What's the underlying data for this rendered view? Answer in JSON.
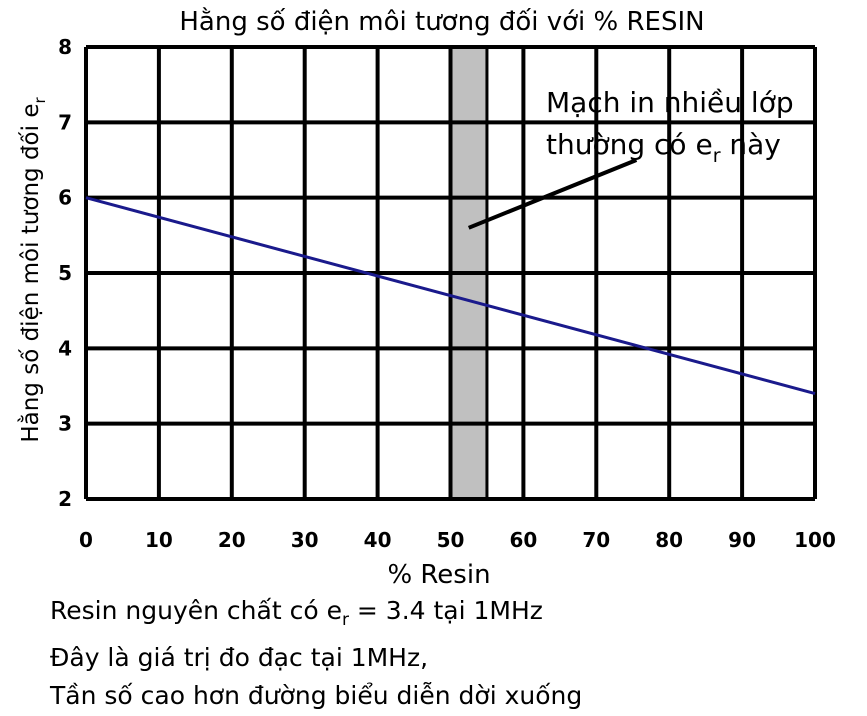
{
  "chart_data": {
    "type": "line",
    "title": "Hằng số điện môi tương đối với % RESIN",
    "xlabel": "% Resin",
    "ylabel": "Hằng số điện môi tương đối e",
    "ylabel_subscript": "r",
    "x_ticks": [
      0,
      10,
      20,
      30,
      40,
      50,
      60,
      70,
      80,
      90,
      100
    ],
    "y_ticks": [
      2,
      3,
      4,
      5,
      6,
      7,
      8
    ],
    "xlim": [
      0,
      100
    ],
    "ylim": [
      2,
      8
    ],
    "grid": true,
    "legend": "none",
    "series": [
      {
        "x": [
          0,
          100
        ],
        "y": [
          6.0,
          3.4
        ],
        "color": "#1a1a8c"
      }
    ],
    "highlight_band": {
      "x_range": [
        50,
        55
      ],
      "color": "#c0c0c0"
    },
    "annotation": {
      "line1": "Mạch in nhiều lớp",
      "line2_pre": "thường có e",
      "line2_sub": "r",
      "line2_post": " này",
      "arrow_from": [
        75.5,
        6.5
      ],
      "arrow_to": [
        52.5,
        5.6
      ]
    }
  },
  "caption": {
    "line1_pre": "Resin nguyên chất có e",
    "line1_sub": "r",
    "line1_post": " = 3.4 tại 1MHz",
    "line2": "Đây là giá trị đo đạc tại 1MHz,",
    "line3": "Tần số cao hơn đường biểu diễn dời xuống"
  }
}
